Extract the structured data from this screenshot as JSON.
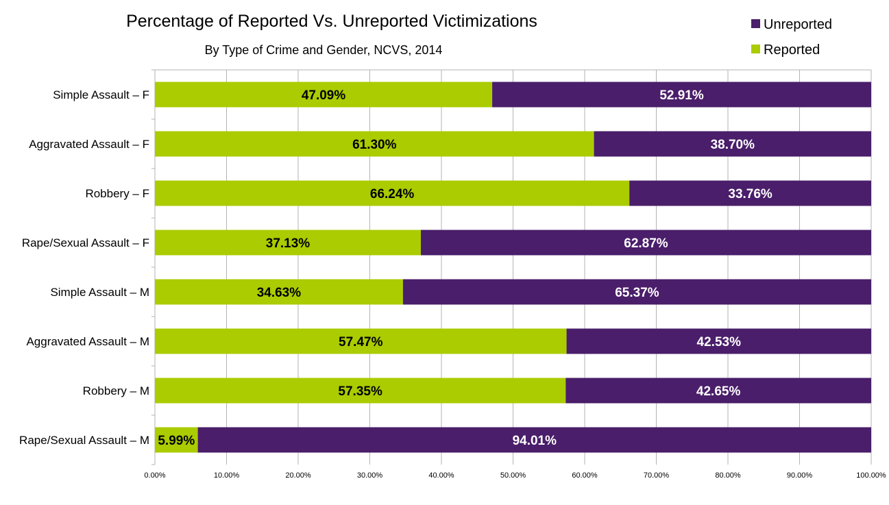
{
  "chart_data": {
    "type": "bar",
    "orientation": "horizontal",
    "stacked": true,
    "title": "Percentage of Reported Vs. Unreported Victimizations",
    "subtitle": "By Type of Crime and Gender, NCVS, 2014",
    "categories": [
      "Simple Assault – F",
      "Aggravated Assault – F",
      "Robbery – F",
      "Rape/Sexual Assault – F",
      "Simple Assault – M",
      "Aggravated Assault – M",
      "Robbery – M",
      "Rape/Sexual Assault – M"
    ],
    "series": [
      {
        "name": "Reported",
        "color": "#aacc00",
        "label_color": "#000000",
        "values": [
          47.09,
          61.3,
          66.24,
          37.13,
          34.63,
          57.47,
          57.35,
          5.99
        ],
        "labels": [
          "47.09%",
          "61.30%",
          "66.24%",
          "37.13%",
          "34.63%",
          "57.47%",
          "57.35%",
          "5.99%"
        ]
      },
      {
        "name": "Unreported",
        "color": "#4a1e6a",
        "label_color": "#ffffff",
        "values": [
          52.91,
          38.7,
          33.76,
          62.87,
          65.37,
          42.53,
          42.65,
          94.01
        ],
        "labels": [
          "52.91%",
          "38.70%",
          "33.76%",
          "62.87%",
          "65.37%",
          "42.53%",
          "42.65%",
          "94.01%"
        ]
      }
    ],
    "legend_order": [
      "Unreported",
      "Reported"
    ],
    "legend_position": "top-right",
    "xlim": [
      0,
      100
    ],
    "xticks": [
      0,
      10,
      20,
      30,
      40,
      50,
      60,
      70,
      80,
      90,
      100
    ],
    "xtick_labels": [
      "0.00%",
      "10.00%",
      "20.00%",
      "30.00%",
      "40.00%",
      "50.00%",
      "60.00%",
      "70.00%",
      "80.00%",
      "90.00%",
      "100.00%"
    ],
    "grid": true,
    "grid_color": "#b3b3b3"
  }
}
